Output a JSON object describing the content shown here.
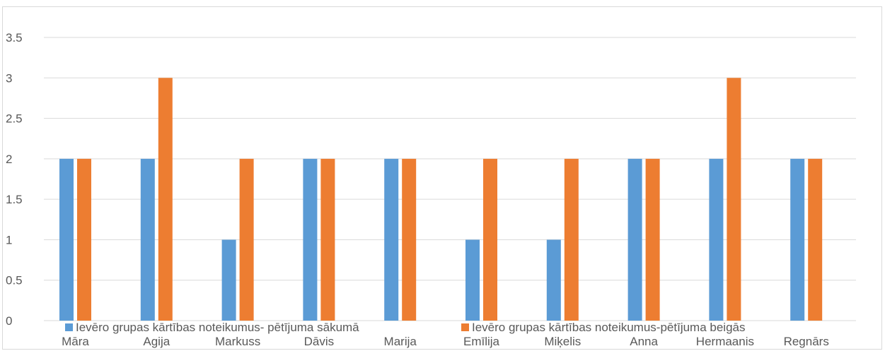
{
  "chart_data": {
    "type": "bar",
    "categories": [
      "Māra",
      "Agija",
      "Markuss",
      "Dāvis",
      "Marija",
      "Emīlija",
      "Miķelis",
      "Anna",
      "Hermaanis",
      "Regnārs"
    ],
    "series": [
      {
        "name": "Ievēro grupas kārtības noteikumus- pētījuma sākumā",
        "color": "#5b9bd5",
        "values": [
          2,
          2,
          1,
          2,
          2,
          1,
          1,
          2,
          2,
          2
        ]
      },
      {
        "name": "Ievēro grupas kārtības noteikumus-pētījuma beigās",
        "color": "#ed7d31",
        "values": [
          2,
          3,
          2,
          2,
          2,
          2,
          2,
          2,
          3,
          2
        ]
      }
    ],
    "ylim": [
      0,
      3.5
    ],
    "yticks": [
      "0",
      "0.5",
      "1",
      "1.5",
      "2",
      "2.5",
      "3",
      "3.5"
    ],
    "grid": true,
    "legend_position": "bottom"
  }
}
